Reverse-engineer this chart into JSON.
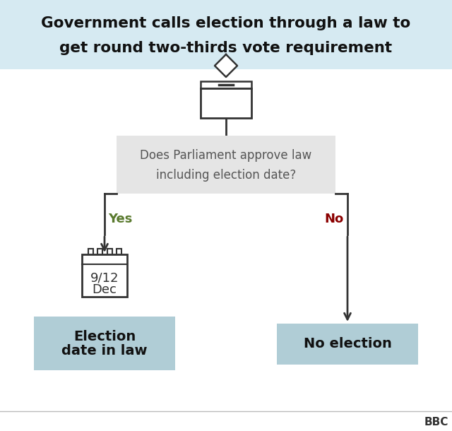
{
  "title_line1": "Government calls election through a law to",
  "title_line2": "get round two-thirds vote requirement",
  "title_bg": "#d6eaf2",
  "main_bg": "#ffffff",
  "question_text_line1": "Does Parliament approve law",
  "question_text_line2": "including election date?",
  "question_box_color": "#e5e5e5",
  "question_text_color": "#555555",
  "yes_label": "Yes",
  "yes_color": "#5a7a2e",
  "no_label": "No",
  "no_color": "#8b0000",
  "outcome_box_color": "#b0cdd6",
  "outcome_text_color": "#111111",
  "arrow_color": "#333333",
  "calendar_color": "#333333",
  "bbc_text": "BBC",
  "bottom_line_color": "#bbbbbb",
  "title_text_color": "#111111",
  "fig_w": 6.4,
  "fig_h": 6.1,
  "dpi": 100
}
